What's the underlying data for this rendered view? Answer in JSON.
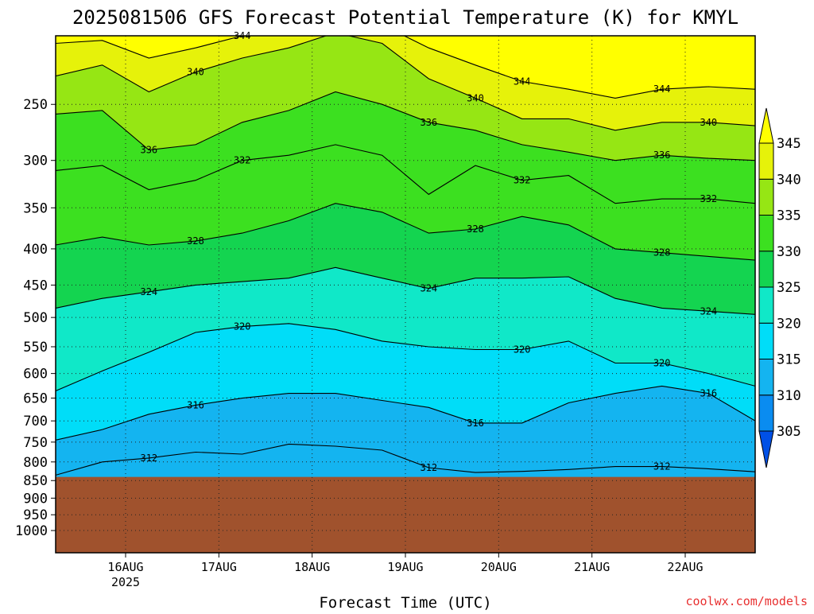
{
  "chart_data": {
    "type": "heatmap",
    "title": "2025081506 GFS Forecast Potential Temperature (K) for KMYL",
    "xlabel": "Forecast Time (UTC)",
    "ylabel": "",
    "watermark": "coolwx.com/models",
    "x_range": [
      "2025-08-15 06:00",
      "2025-08-22 18:00"
    ],
    "x_ticks": [
      {
        "label": "16AUG",
        "sublabel": "2025",
        "date": "2025-08-16 00:00"
      },
      {
        "label": "17AUG",
        "sublabel": "",
        "date": "2025-08-17 00:00"
      },
      {
        "label": "18AUG",
        "sublabel": "",
        "date": "2025-08-18 00:00"
      },
      {
        "label": "19AUG",
        "sublabel": "",
        "date": "2025-08-19 00:00"
      },
      {
        "label": "20AUG",
        "sublabel": "",
        "date": "2025-08-20 00:00"
      },
      {
        "label": "21AUG",
        "sublabel": "",
        "date": "2025-08-21 00:00"
      },
      {
        "label": "22AUG",
        "sublabel": "",
        "date": "2025-08-22 00:00"
      }
    ],
    "y_axis": {
      "scale": "log",
      "reversed": true,
      "range": [
        200,
        1075
      ],
      "ticks": [
        250,
        300,
        350,
        400,
        450,
        500,
        550,
        600,
        650,
        700,
        750,
        800,
        850,
        900,
        950,
        1000
      ]
    },
    "grid": "dotted",
    "colorbar": {
      "levels": [
        305,
        310,
        315,
        320,
        325,
        330,
        335,
        340,
        345
      ],
      "colors": [
        "#0050e6",
        "#0a8cf0",
        "#14b4f0",
        "#00ddf8",
        "#10e8c8",
        "#14d450",
        "#3ce020",
        "#96e614",
        "#e6f20a",
        "#ffff00"
      ],
      "extend": "both"
    },
    "terrain": {
      "surface_pressure": 840,
      "color": "#a0522d"
    },
    "times": [
      "15/06",
      "15/18",
      "16/06",
      "16/18",
      "17/06",
      "17/18",
      "18/06",
      "18/18",
      "19/06",
      "19/18",
      "20/06",
      "20/18",
      "21/06",
      "21/18",
      "22/06",
      "22/18"
    ],
    "isentropes": [
      {
        "theta": 312,
        "pressure": [
          835,
          800,
          790,
          775,
          780,
          755,
          760,
          770,
          815,
          828,
          825,
          820,
          812,
          812,
          818,
          826
        ]
      },
      {
        "theta": 316,
        "pressure": [
          745,
          720,
          685,
          665,
          650,
          640,
          640,
          655,
          670,
          705,
          705,
          660,
          640,
          625,
          640,
          700
        ]
      },
      {
        "theta": 320,
        "pressure": [
          635,
          595,
          560,
          525,
          515,
          510,
          520,
          540,
          550,
          555,
          555,
          540,
          580,
          580,
          600,
          625
        ]
      },
      {
        "theta": 324,
        "pressure": [
          485,
          470,
          460,
          450,
          445,
          440,
          425,
          440,
          455,
          440,
          440,
          438,
          470,
          485,
          490,
          495
        ]
      },
      {
        "theta": 328,
        "pressure": [
          395,
          385,
          395,
          390,
          380,
          365,
          345,
          355,
          380,
          375,
          360,
          370,
          400,
          405,
          410,
          415
        ]
      },
      {
        "theta": 332,
        "pressure": [
          310,
          305,
          330,
          320,
          300,
          295,
          285,
          295,
          335,
          305,
          320,
          315,
          345,
          340,
          340,
          345
        ]
      },
      {
        "theta": 336,
        "pressure": [
          258,
          255,
          290,
          285,
          265,
          255,
          240,
          250,
          265,
          272,
          285,
          292,
          300,
          295,
          298,
          300
        ]
      },
      {
        "theta": 340,
        "pressure": [
          228,
          220,
          240,
          225,
          215,
          208,
          198,
          205,
          230,
          245,
          262,
          262,
          272,
          265,
          265,
          268
        ]
      },
      {
        "theta": 344,
        "pressure": [
          205,
          203,
          215,
          208,
          200,
          196,
          190,
          193,
          208,
          220,
          232,
          238,
          245,
          238,
          236,
          238
        ]
      }
    ]
  }
}
